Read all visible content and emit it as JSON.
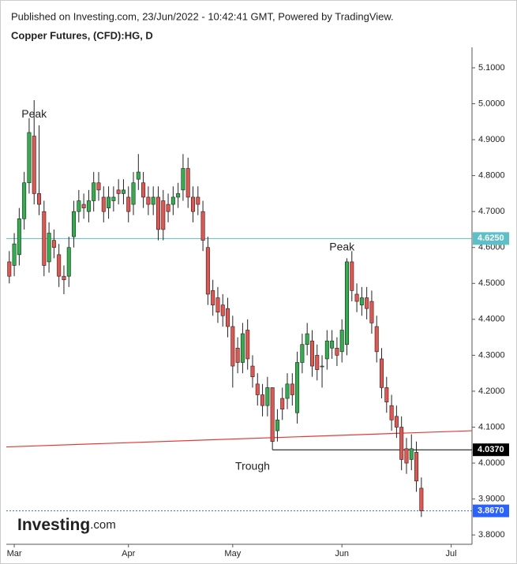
{
  "chart_data": {
    "type": "candlestick",
    "source": "Published on Investing.com, 23/Jun/2022 - 10:42:41 GMT, Powered by TradingView.",
    "title": "Copper Futures, (CFD):HG, D",
    "logo": "Investing",
    "logo_suffix": ".com",
    "up_color": "#2db14a",
    "down_color": "#e8534e",
    "open": [
      4.56,
      4.55,
      4.58,
      4.68,
      4.78,
      4.91,
      4.75,
      4.7,
      4.56,
      4.62,
      4.58,
      4.52,
      4.52,
      4.63,
      4.7,
      4.72,
      4.7,
      4.73,
      4.78,
      4.74,
      4.71,
      4.73,
      4.76,
      4.75,
      4.74,
      4.72,
      4.79,
      4.78,
      4.74,
      4.72,
      4.74,
      4.73,
      4.72,
      4.72,
      4.74,
      4.76,
      4.82,
      4.74,
      4.74,
      4.7,
      4.6,
      4.48,
      4.46,
      4.44,
      4.43,
      4.38,
      4.32,
      4.28,
      4.37,
      4.27,
      4.22,
      4.19,
      4.16,
      4.21,
      4.09,
      4.18,
      4.18,
      4.22,
      4.14,
      4.28,
      4.33,
      4.34,
      4.3,
      4.27,
      4.29,
      4.32,
      4.32,
      4.31,
      4.33,
      4.56,
      4.47,
      4.44,
      4.46,
      4.45,
      4.38,
      4.29,
      4.21,
      4.16,
      4.13,
      4.1,
      4.04,
      4.01,
      4.03,
      3.93
    ],
    "high": [
      4.59,
      4.64,
      4.71,
      4.81,
      4.96,
      5.01,
      4.94,
      4.73,
      4.67,
      4.65,
      4.61,
      4.55,
      4.63,
      4.73,
      4.76,
      4.75,
      4.76,
      4.81,
      4.81,
      4.77,
      4.77,
      4.77,
      4.79,
      4.79,
      4.77,
      4.81,
      4.86,
      4.81,
      4.77,
      4.77,
      4.77,
      4.76,
      4.75,
      4.77,
      4.78,
      4.86,
      4.85,
      4.77,
      4.77,
      4.73,
      4.63,
      4.51,
      4.49,
      4.47,
      4.46,
      4.41,
      4.35,
      4.39,
      4.4,
      4.3,
      4.25,
      4.22,
      4.24,
      4.21,
      4.15,
      4.21,
      4.25,
      4.25,
      4.31,
      4.36,
      4.39,
      4.37,
      4.33,
      4.3,
      4.37,
      4.37,
      4.35,
      4.4,
      4.57,
      4.59,
      4.5,
      4.49,
      4.49,
      4.48,
      4.41,
      4.32,
      4.24,
      4.19,
      4.16,
      4.13,
      4.07,
      4.08,
      4.06,
      3.96
    ],
    "low": [
      4.5,
      4.52,
      4.55,
      4.65,
      4.75,
      4.72,
      4.69,
      4.52,
      4.53,
      4.57,
      4.49,
      4.47,
      4.49,
      4.6,
      4.67,
      4.68,
      4.67,
      4.7,
      4.73,
      4.67,
      4.68,
      4.7,
      4.72,
      4.72,
      4.67,
      4.69,
      4.76,
      4.71,
      4.69,
      4.69,
      4.62,
      4.62,
      4.67,
      4.69,
      4.71,
      4.73,
      4.71,
      4.67,
      4.69,
      4.59,
      4.44,
      4.41,
      4.39,
      4.38,
      4.35,
      4.21,
      4.25,
      4.25,
      4.26,
      4.21,
      4.16,
      4.13,
      4.13,
      4.037,
      4.06,
      4.12,
      4.15,
      4.16,
      4.11,
      4.25,
      4.3,
      4.24,
      4.23,
      4.21,
      4.26,
      4.29,
      4.27,
      4.28,
      4.3,
      4.45,
      4.42,
      4.41,
      4.4,
      4.36,
      4.28,
      4.18,
      4.14,
      4.09,
      4.07,
      3.98,
      3.97,
      3.98,
      3.92,
      3.85
    ],
    "close": [
      4.52,
      4.61,
      4.68,
      4.78,
      4.92,
      4.75,
      4.72,
      4.55,
      4.64,
      4.6,
      4.52,
      4.51,
      4.6,
      4.7,
      4.73,
      4.71,
      4.73,
      4.78,
      4.76,
      4.7,
      4.74,
      4.74,
      4.75,
      4.76,
      4.7,
      4.78,
      4.81,
      4.74,
      4.72,
      4.74,
      4.65,
      4.65,
      4.7,
      4.74,
      4.75,
      4.82,
      4.74,
      4.7,
      4.72,
      4.62,
      4.47,
      4.44,
      4.42,
      4.41,
      4.38,
      4.27,
      4.28,
      4.36,
      4.29,
      4.24,
      4.19,
      4.16,
      4.21,
      4.06,
      4.12,
      4.15,
      4.22,
      4.19,
      4.28,
      4.33,
      4.36,
      4.27,
      4.26,
      4.27,
      4.34,
      4.34,
      4.3,
      4.37,
      4.56,
      4.48,
      4.45,
      4.46,
      4.43,
      4.39,
      4.31,
      4.21,
      4.17,
      4.12,
      4.1,
      4.01,
      4.0,
      4.04,
      3.95,
      3.867
    ],
    "xlim": [
      -0.6,
      93.2
    ],
    "xticks": [
      {
        "value": 1,
        "label": "Mar"
      },
      {
        "value": 24,
        "label": "Apr"
      },
      {
        "value": 45,
        "label": "May"
      },
      {
        "value": 67,
        "label": "Jun"
      },
      {
        "value": 89,
        "label": "Jul"
      }
    ],
    "ylim": [
      3.774,
      5.157
    ],
    "yticks": [
      {
        "value": 3.8,
        "label": "3.8000"
      },
      {
        "value": 3.9,
        "label": "3.9000"
      },
      {
        "value": 4.0,
        "label": "4.0000"
      },
      {
        "value": 4.1,
        "label": "4.1000"
      },
      {
        "value": 4.2,
        "label": "4.2000"
      },
      {
        "value": 4.3,
        "label": "4.3000"
      },
      {
        "value": 4.4,
        "label": "4.4000"
      },
      {
        "value": 4.5,
        "label": "4.5000"
      },
      {
        "value": 4.6,
        "label": "4.6000"
      },
      {
        "value": 4.7,
        "label": "4.7000"
      },
      {
        "value": 4.8,
        "label": "4.8000"
      },
      {
        "value": 4.9,
        "label": "4.9000"
      },
      {
        "value": 5.0,
        "label": "5.0000"
      },
      {
        "value": 5.1,
        "label": "5.1000"
      }
    ],
    "price_lines": [
      {
        "value": 4.625,
        "label": "4.6250",
        "color": "#5bc0c8",
        "from": -0.6,
        "style": "solid"
      },
      {
        "value": 4.037,
        "label": "4.0370",
        "color": "#000000",
        "from": 53,
        "style": "solid"
      },
      {
        "value": 3.867,
        "label": "3.8670",
        "color": "#2962ff",
        "from": -0.6,
        "style": "dotted"
      }
    ],
    "trendline": {
      "start": 4.045,
      "end": 4.09,
      "color": "#e53935"
    },
    "annotations": [
      {
        "text": "Peak",
        "x": 5,
        "y": 4.97
      },
      {
        "text": "Peak",
        "x": 67,
        "y": 4.6
      },
      {
        "text": "Trough",
        "x": 49,
        "y": 3.99
      }
    ]
  }
}
